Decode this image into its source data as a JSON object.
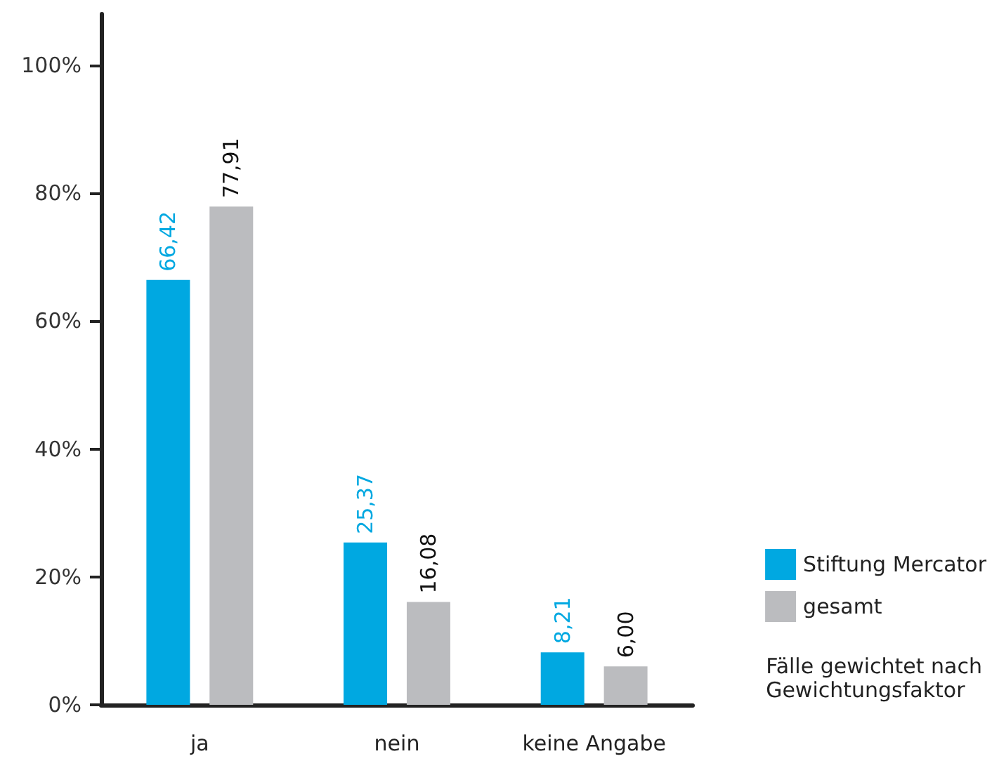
{
  "chart_data": {
    "type": "bar",
    "categories": [
      "ja",
      "nein",
      "keine Angabe"
    ],
    "series": [
      {
        "name": "Stiftung Mercator",
        "color": "#00a8e1",
        "values": [
          66.42,
          25.37,
          8.21
        ],
        "value_labels": [
          "66,42",
          "25,37",
          "8,21"
        ]
      },
      {
        "name": "gesamt",
        "color": "#bbbcbf",
        "values": [
          77.91,
          16.08,
          6.0
        ],
        "value_labels": [
          "77,91",
          "16,08",
          "6,00"
        ]
      }
    ],
    "ylim": [
      0,
      108
    ],
    "yticks": [
      {
        "value": 0,
        "label": "0%"
      },
      {
        "value": 20,
        "label": "20%"
      },
      {
        "value": 40,
        "label": "40%"
      },
      {
        "value": 60,
        "label": "60%"
      },
      {
        "value": 80,
        "label": "80%"
      },
      {
        "value": 100,
        "label": "100%"
      }
    ],
    "grid": false,
    "legend": "right",
    "annotations": [
      "Fälle gewichtet nach\nGewichtungsfaktor"
    ]
  }
}
